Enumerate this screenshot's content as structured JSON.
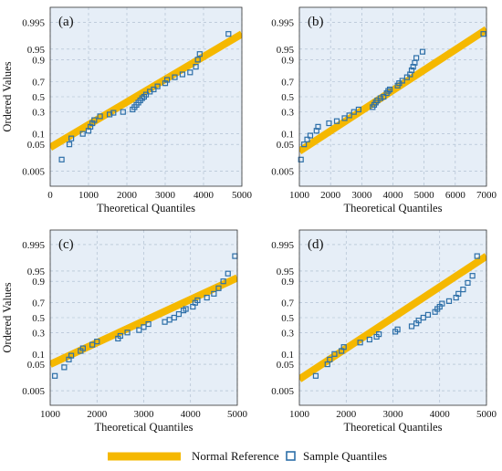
{
  "chart_data": [
    {
      "type": "scatter",
      "panel_label": "(a)",
      "xlabel": "Theoretical Quantiles",
      "ylabel": "Ordered Values",
      "xlim": [
        0,
        5000
      ],
      "xticks": [
        0,
        1000,
        2000,
        3000,
        4000,
        5000
      ],
      "yscale": "normal-probability",
      "yticks": [
        0.005,
        0.05,
        0.1,
        0.3,
        0.5,
        0.7,
        0.9,
        0.95,
        0.995
      ],
      "ylim": [
        0.001,
        0.999
      ],
      "grid": true,
      "reference_line": {
        "x": [
          0,
          5000
        ],
        "y": [
          0.04,
          0.985
        ]
      },
      "points": [
        [
          300,
          0.015
        ],
        [
          500,
          0.05
        ],
        [
          550,
          0.075
        ],
        [
          850,
          0.1
        ],
        [
          1000,
          0.12
        ],
        [
          1050,
          0.15
        ],
        [
          1100,
          0.18
        ],
        [
          1150,
          0.21
        ],
        [
          1300,
          0.25
        ],
        [
          1550,
          0.27
        ],
        [
          1650,
          0.29
        ],
        [
          1900,
          0.3
        ],
        [
          2150,
          0.33
        ],
        [
          2200,
          0.36
        ],
        [
          2250,
          0.39
        ],
        [
          2300,
          0.42
        ],
        [
          2350,
          0.45
        ],
        [
          2400,
          0.48
        ],
        [
          2450,
          0.5
        ],
        [
          2500,
          0.53
        ],
        [
          2600,
          0.57
        ],
        [
          2700,
          0.6
        ],
        [
          2800,
          0.64
        ],
        [
          3000,
          0.68
        ],
        [
          3050,
          0.72
        ],
        [
          3250,
          0.75
        ],
        [
          3450,
          0.78
        ],
        [
          3650,
          0.8
        ],
        [
          3800,
          0.85
        ],
        [
          3850,
          0.9
        ],
        [
          3900,
          0.93
        ],
        [
          4650,
          0.985
        ]
      ]
    },
    {
      "type": "scatter",
      "panel_label": "(b)",
      "xlabel": "Theoretical Quantiles",
      "ylabel": "",
      "xlim": [
        1000,
        7000
      ],
      "xticks": [
        1000,
        2000,
        3000,
        4000,
        5000,
        6000,
        7000
      ],
      "yscale": "normal-probability",
      "yticks": [
        0.005,
        0.05,
        0.1,
        0.3,
        0.5,
        0.7,
        0.9,
        0.95,
        0.995
      ],
      "ylim": [
        0.001,
        0.999
      ],
      "grid": true,
      "reference_line": {
        "x": [
          1000,
          7000
        ],
        "y": [
          0.03,
          0.99
        ]
      },
      "points": [
        [
          1050,
          0.015
        ],
        [
          1150,
          0.05
        ],
        [
          1250,
          0.07
        ],
        [
          1350,
          0.09
        ],
        [
          1550,
          0.12
        ],
        [
          1600,
          0.15
        ],
        [
          1950,
          0.18
        ],
        [
          2200,
          0.2
        ],
        [
          2450,
          0.23
        ],
        [
          2600,
          0.26
        ],
        [
          2750,
          0.3
        ],
        [
          2900,
          0.33
        ],
        [
          3350,
          0.36
        ],
        [
          3400,
          0.39
        ],
        [
          3450,
          0.42
        ],
        [
          3500,
          0.45
        ],
        [
          3600,
          0.48
        ],
        [
          3700,
          0.5
        ],
        [
          3800,
          0.55
        ],
        [
          3850,
          0.58
        ],
        [
          3900,
          0.6
        ],
        [
          4150,
          0.65
        ],
        [
          4200,
          0.68
        ],
        [
          4300,
          0.71
        ],
        [
          4450,
          0.75
        ],
        [
          4550,
          0.78
        ],
        [
          4600,
          0.82
        ],
        [
          4650,
          0.85
        ],
        [
          4700,
          0.88
        ],
        [
          4750,
          0.91
        ],
        [
          4950,
          0.94
        ],
        [
          6900,
          0.985
        ]
      ]
    },
    {
      "type": "scatter",
      "panel_label": "(c)",
      "xlabel": "Theoretical Quantiles",
      "ylabel": "Ordered Values",
      "xlim": [
        1000,
        5000
      ],
      "xticks": [
        1000,
        2000,
        3000,
        4000,
        5000
      ],
      "yscale": "normal-probability",
      "yticks": [
        0.005,
        0.05,
        0.1,
        0.3,
        0.5,
        0.7,
        0.9,
        0.95,
        0.995
      ],
      "ylim": [
        0.001,
        0.999
      ],
      "grid": true,
      "reference_line": {
        "x": [
          1000,
          5000
        ],
        "y": [
          0.05,
          0.92
        ]
      },
      "points": [
        [
          1100,
          0.02
        ],
        [
          1300,
          0.04
        ],
        [
          1400,
          0.07
        ],
        [
          1450,
          0.09
        ],
        [
          1650,
          0.12
        ],
        [
          1700,
          0.14
        ],
        [
          1900,
          0.17
        ],
        [
          2000,
          0.2
        ],
        [
          2450,
          0.23
        ],
        [
          2500,
          0.26
        ],
        [
          2650,
          0.3
        ],
        [
          2900,
          0.33
        ],
        [
          3000,
          0.37
        ],
        [
          3100,
          0.41
        ],
        [
          3450,
          0.44
        ],
        [
          3550,
          0.47
        ],
        [
          3650,
          0.5
        ],
        [
          3750,
          0.55
        ],
        [
          3850,
          0.6
        ],
        [
          3900,
          0.62
        ],
        [
          4050,
          0.65
        ],
        [
          4100,
          0.7
        ],
        [
          4150,
          0.73
        ],
        [
          4350,
          0.76
        ],
        [
          4500,
          0.8
        ],
        [
          4600,
          0.85
        ],
        [
          4700,
          0.9
        ],
        [
          4800,
          0.94
        ],
        [
          4950,
          0.985
        ]
      ]
    },
    {
      "type": "scatter",
      "panel_label": "(d)",
      "xlabel": "Theoretical Quantiles",
      "ylabel": "",
      "xlim": [
        1000,
        5000
      ],
      "xticks": [
        1000,
        2000,
        3000,
        4000,
        5000
      ],
      "yscale": "normal-probability",
      "yticks": [
        0.005,
        0.05,
        0.1,
        0.3,
        0.5,
        0.7,
        0.9,
        0.95,
        0.995
      ],
      "ylim": [
        0.001,
        0.999
      ],
      "grid": true,
      "reference_line": {
        "x": [
          1000,
          5000
        ],
        "y": [
          0.015,
          0.985
        ]
      },
      "points": [
        [
          1350,
          0.02
        ],
        [
          1600,
          0.05
        ],
        [
          1650,
          0.07
        ],
        [
          1750,
          0.1
        ],
        [
          1900,
          0.12
        ],
        [
          1950,
          0.15
        ],
        [
          2300,
          0.19
        ],
        [
          2500,
          0.22
        ],
        [
          2650,
          0.25
        ],
        [
          2700,
          0.28
        ],
        [
          3050,
          0.31
        ],
        [
          3100,
          0.34
        ],
        [
          3400,
          0.38
        ],
        [
          3500,
          0.42
        ],
        [
          3550,
          0.46
        ],
        [
          3650,
          0.5
        ],
        [
          3750,
          0.54
        ],
        [
          3900,
          0.58
        ],
        [
          3950,
          0.62
        ],
        [
          4000,
          0.65
        ],
        [
          4050,
          0.69
        ],
        [
          4200,
          0.72
        ],
        [
          4350,
          0.76
        ],
        [
          4400,
          0.8
        ],
        [
          4500,
          0.84
        ],
        [
          4600,
          0.89
        ],
        [
          4700,
          0.93
        ],
        [
          4800,
          0.985
        ]
      ]
    }
  ],
  "legend": {
    "position": "bottom",
    "items": [
      {
        "label": "Normal Reference",
        "color": "#F5B800",
        "kind": "line"
      },
      {
        "label": "Sample Quantiles",
        "color": "#2D6FA8",
        "kind": "square-marker"
      }
    ]
  },
  "colors": {
    "plot_background": "#E6EEF7",
    "grid": "#A8B9CC",
    "reference_line": "#F5B800",
    "marker_edge": "#2D6FA8"
  }
}
